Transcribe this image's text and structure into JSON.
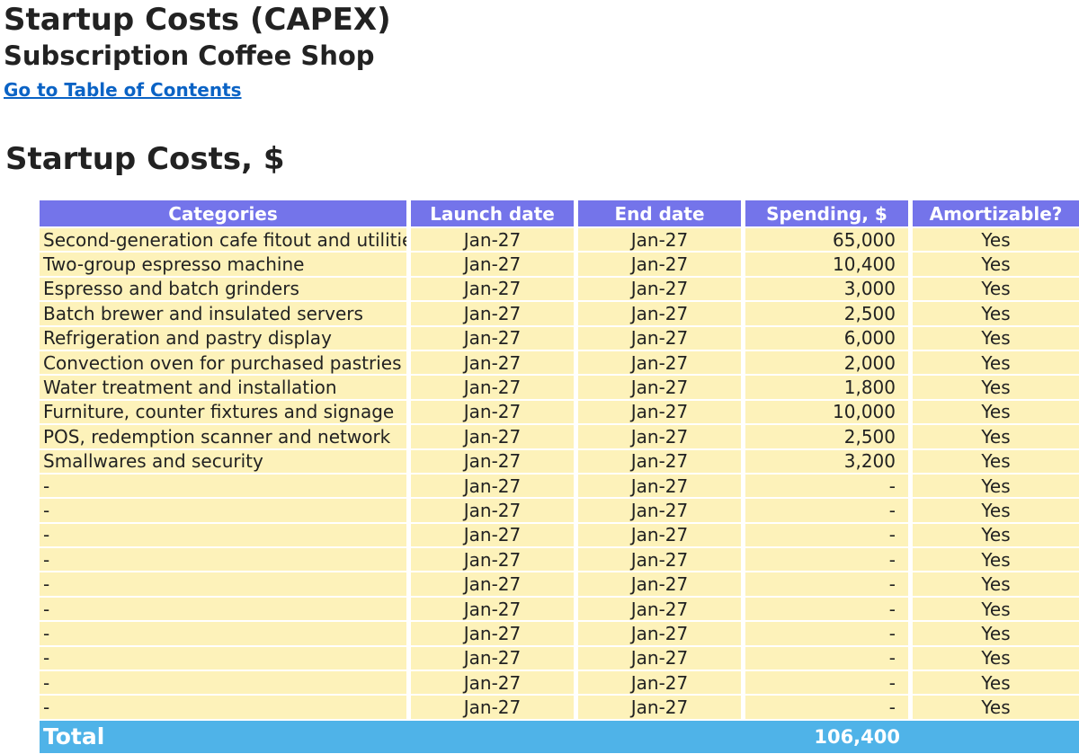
{
  "header": {
    "title": "Startup Costs (CAPEX)",
    "subtitle": "Subscription Coffee Shop",
    "toc_link": "Go to Table of Contents"
  },
  "section_title": "Startup Costs, $",
  "table": {
    "columns": [
      "Categories",
      "Launch date",
      "End date",
      "Spending, $",
      "Amortizable?"
    ],
    "rows": [
      {
        "category": "Second-generation cafe fitout and utilities",
        "launch": "Jan-27",
        "end": "Jan-27",
        "spending": "65,000",
        "amortizable": "Yes"
      },
      {
        "category": "Two-group espresso machine",
        "launch": "Jan-27",
        "end": "Jan-27",
        "spending": "10,400",
        "amortizable": "Yes"
      },
      {
        "category": "Espresso and batch grinders",
        "launch": "Jan-27",
        "end": "Jan-27",
        "spending": "3,000",
        "amortizable": "Yes"
      },
      {
        "category": "Batch brewer and insulated servers",
        "launch": "Jan-27",
        "end": "Jan-27",
        "spending": "2,500",
        "amortizable": "Yes"
      },
      {
        "category": "Refrigeration and pastry display",
        "launch": "Jan-27",
        "end": "Jan-27",
        "spending": "6,000",
        "amortizable": "Yes"
      },
      {
        "category": "Convection oven for purchased pastries",
        "launch": "Jan-27",
        "end": "Jan-27",
        "spending": "2,000",
        "amortizable": "Yes"
      },
      {
        "category": "Water treatment and installation",
        "launch": "Jan-27",
        "end": "Jan-27",
        "spending": "1,800",
        "amortizable": "Yes"
      },
      {
        "category": "Furniture, counter fixtures and signage",
        "launch": "Jan-27",
        "end": "Jan-27",
        "spending": "10,000",
        "amortizable": "Yes"
      },
      {
        "category": "POS, redemption scanner and network",
        "launch": "Jan-27",
        "end": "Jan-27",
        "spending": "2,500",
        "amortizable": "Yes"
      },
      {
        "category": "Smallwares and security",
        "launch": "Jan-27",
        "end": "Jan-27",
        "spending": "3,200",
        "amortizable": "Yes"
      },
      {
        "category": "-",
        "launch": "Jan-27",
        "end": "Jan-27",
        "spending": "-",
        "amortizable": "Yes"
      },
      {
        "category": "-",
        "launch": "Jan-27",
        "end": "Jan-27",
        "spending": "-",
        "amortizable": "Yes"
      },
      {
        "category": "-",
        "launch": "Jan-27",
        "end": "Jan-27",
        "spending": "-",
        "amortizable": "Yes"
      },
      {
        "category": "-",
        "launch": "Jan-27",
        "end": "Jan-27",
        "spending": "-",
        "amortizable": "Yes"
      },
      {
        "category": "-",
        "launch": "Jan-27",
        "end": "Jan-27",
        "spending": "-",
        "amortizable": "Yes"
      },
      {
        "category": "-",
        "launch": "Jan-27",
        "end": "Jan-27",
        "spending": "-",
        "amortizable": "Yes"
      },
      {
        "category": "-",
        "launch": "Jan-27",
        "end": "Jan-27",
        "spending": "-",
        "amortizable": "Yes"
      },
      {
        "category": "-",
        "launch": "Jan-27",
        "end": "Jan-27",
        "spending": "-",
        "amortizable": "Yes"
      },
      {
        "category": "-",
        "launch": "Jan-27",
        "end": "Jan-27",
        "spending": "-",
        "amortizable": "Yes"
      },
      {
        "category": "-",
        "launch": "Jan-27",
        "end": "Jan-27",
        "spending": "-",
        "amortizable": "Yes"
      }
    ],
    "total": {
      "label": "Total",
      "spending": "106,400"
    }
  },
  "colors": {
    "header_bg": "#7474ea",
    "row_bg": "#fdf2ba",
    "total_bg": "#4fb3e8",
    "link": "#0b63c5"
  }
}
